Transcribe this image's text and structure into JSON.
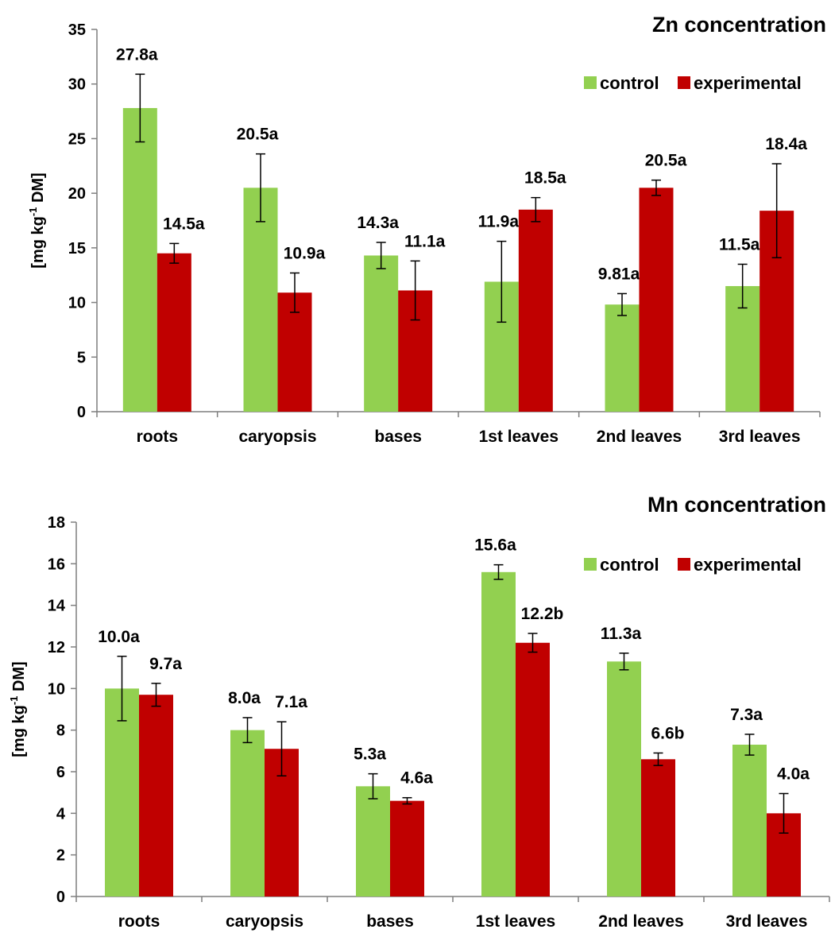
{
  "colors": {
    "control": "#92d050",
    "experimental": "#c00000",
    "axis": "#7f7f7f",
    "errorbar": "#000000"
  },
  "chart_data": [
    {
      "type": "bar",
      "title": "Zn concentration",
      "ylabel_main": "[mg kg",
      "ylabel_sup": "-1",
      "ylabel_tail": " DM]",
      "ylim": [
        0,
        35
      ],
      "yticks": [
        "0",
        "5",
        "10",
        "15",
        "20",
        "25",
        "30",
        "35"
      ],
      "ytick_values": [
        0,
        5,
        10,
        15,
        20,
        25,
        30,
        35
      ],
      "categories": [
        "roots",
        "caryopsis",
        "bases",
        "1st leaves",
        "2nd leaves",
        "3rd leaves"
      ],
      "legend_position": "top-right",
      "grid": false,
      "series": [
        {
          "name": "control",
          "values": [
            27.8,
            20.5,
            14.3,
            11.9,
            9.81,
            11.5
          ],
          "errors": [
            3.1,
            3.1,
            1.2,
            3.7,
            1.0,
            2.0
          ],
          "labels": [
            "27.8a",
            "20.5a",
            "14.3a",
            "11.9a",
            "9.81a",
            "11.5a"
          ]
        },
        {
          "name": "experimental",
          "values": [
            14.5,
            10.9,
            11.1,
            18.5,
            20.5,
            18.4
          ],
          "errors": [
            0.9,
            1.8,
            2.7,
            1.1,
            0.7,
            4.3
          ],
          "labels": [
            "14.5a",
            "10.9a",
            "11.1a",
            "18.5a",
            "20.5a",
            "18.4a"
          ]
        }
      ]
    },
    {
      "type": "bar",
      "title": "Mn concentration",
      "ylabel_main": "[mg kg",
      "ylabel_sup": "-1",
      "ylabel_tail": " DM]",
      "ylim": [
        0,
        18
      ],
      "yticks": [
        "0",
        "2",
        "4",
        "6",
        "8",
        "10",
        "12",
        "14",
        "16",
        "18"
      ],
      "ytick_values": [
        0,
        2,
        4,
        6,
        8,
        10,
        12,
        14,
        16,
        18
      ],
      "categories": [
        "roots",
        "caryopsis",
        "bases",
        "1st leaves",
        "2nd leaves",
        "3rd leaves"
      ],
      "legend_position": "top-right",
      "grid": false,
      "series": [
        {
          "name": "control",
          "values": [
            10.0,
            8.0,
            5.3,
            15.6,
            11.3,
            7.3
          ],
          "errors": [
            1.55,
            0.6,
            0.6,
            0.35,
            0.4,
            0.5
          ],
          "labels": [
            "10.0a",
            "8.0a",
            "5.3a",
            "15.6a",
            "11.3a",
            "7.3a"
          ]
        },
        {
          "name": "experimental",
          "values": [
            9.7,
            7.1,
            4.6,
            12.2,
            6.6,
            4.0
          ],
          "errors": [
            0.55,
            1.3,
            0.15,
            0.45,
            0.3,
            0.95
          ],
          "labels": [
            "9.7a",
            "7.1a",
            "4.6a",
            "12.2b",
            "6.6b",
            "4.0a"
          ]
        }
      ]
    }
  ]
}
